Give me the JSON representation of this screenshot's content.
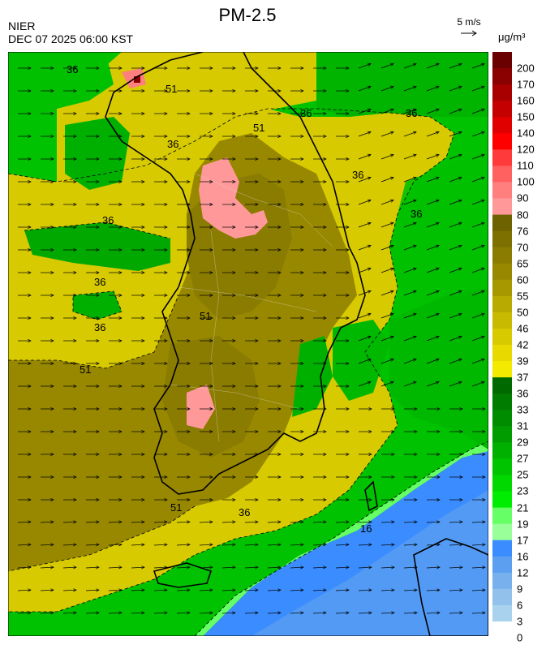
{
  "header": {
    "agency": "NIER",
    "datetime": "DEC 07 2025 06:00 KST",
    "title": "PM-2.5",
    "wind_reference": "5 m/s",
    "unit": "μg/m³"
  },
  "legend": {
    "labels": [
      "200",
      "170",
      "160",
      "150",
      "140",
      "120",
      "110",
      "100",
      "90",
      "80",
      "76",
      "70",
      "65",
      "60",
      "55",
      "50",
      "46",
      "42",
      "39",
      "37",
      "36",
      "33",
      "31",
      "29",
      "27",
      "25",
      "23",
      "21",
      "19",
      "17",
      "16",
      "12",
      "9",
      "6",
      "3",
      "0"
    ],
    "colors": [
      "#6b0000",
      "#8b0000",
      "#a80000",
      "#c40000",
      "#e00000",
      "#ff0000",
      "#ff3a3a",
      "#ff6060",
      "#ff7f7f",
      "#ff9999",
      "#6e6200",
      "#7e7000",
      "#8a7c00",
      "#978800",
      "#a89800",
      "#b8aa00",
      "#c8ba00",
      "#d8ca00",
      "#e8da00",
      "#f2ea00",
      "#006a00",
      "#007c00",
      "#008c00",
      "#009c00",
      "#00b000",
      "#00c400",
      "#00d800",
      "#00ec00",
      "#66ff66",
      "#99ff99",
      "#3a8cff",
      "#5c9ff0",
      "#78b0ee",
      "#92c2ec",
      "#a8d2ee"
    ]
  },
  "contours": {
    "labels": [
      "36",
      "36",
      "36",
      "36",
      "36",
      "36",
      "36",
      "36",
      "36",
      "36",
      "51",
      "51",
      "51",
      "51",
      "51",
      "16"
    ]
  }
}
